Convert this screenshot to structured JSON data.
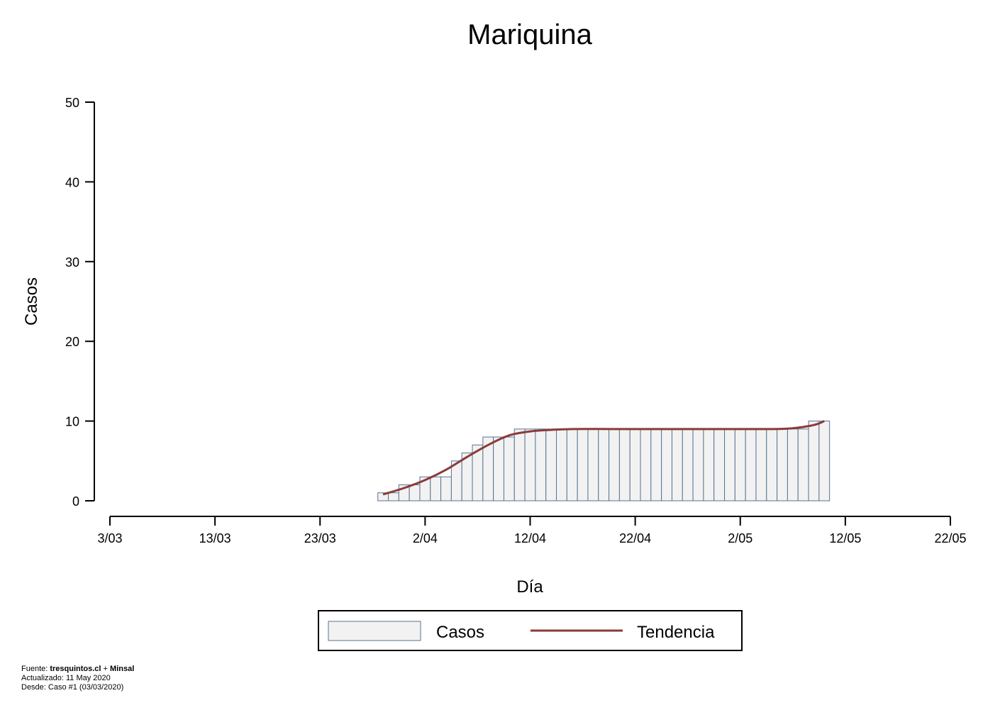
{
  "chart_data": {
    "type": "bar",
    "title": "Mariquina",
    "xlabel": "Día",
    "ylabel": "Casos",
    "ylim": [
      0,
      50
    ],
    "yticks": [
      0,
      10,
      20,
      30,
      40,
      50
    ],
    "x_start_date": "2020-03-03",
    "xticks": [
      "3/03",
      "13/03",
      "23/03",
      "2/04",
      "12/04",
      "22/04",
      "2/05",
      "12/05",
      "22/05"
    ],
    "xlim": [
      "3/03",
      "22/05"
    ],
    "grid": false,
    "legend_position": "bottom",
    "bar_fill": "#f2f2f2",
    "bar_stroke": "#5a7394",
    "trend_color": "#8b3a3a",
    "series": [
      {
        "name": "Casos",
        "kind": "bar",
        "x": [
          "29/03",
          "30/03",
          "31/03",
          "1/04",
          "2/04",
          "3/04",
          "4/04",
          "5/04",
          "6/04",
          "7/04",
          "8/04",
          "9/04",
          "10/04",
          "11/04",
          "12/04",
          "13/04",
          "14/04",
          "15/04",
          "16/04",
          "17/04",
          "18/04",
          "19/04",
          "20/04",
          "21/04",
          "22/04",
          "23/04",
          "24/04",
          "25/04",
          "26/04",
          "27/04",
          "28/04",
          "29/04",
          "30/04",
          "1/05",
          "2/05",
          "3/05",
          "4/05",
          "5/05",
          "6/05",
          "7/05",
          "8/05",
          "9/05",
          "10/05"
        ],
        "values": [
          1,
          1,
          2,
          2,
          3,
          3,
          3,
          5,
          6,
          7,
          8,
          8,
          8,
          9,
          9,
          9,
          9,
          9,
          9,
          9,
          9,
          9,
          9,
          9,
          9,
          9,
          9,
          9,
          9,
          9,
          9,
          9,
          9,
          9,
          9,
          9,
          9,
          9,
          9,
          9,
          9,
          10,
          10
        ]
      },
      {
        "name": "Tendencia",
        "kind": "line",
        "x": [
          "29/03",
          "31/03",
          "2/04",
          "4/04",
          "6/04",
          "8/04",
          "10/04",
          "12/04",
          "14/04",
          "16/04",
          "20/04",
          "25/04",
          "30/04",
          "5/05",
          "7/05",
          "9/05",
          "10/05"
        ],
        "values": [
          0.8,
          1.6,
          2.6,
          3.9,
          5.5,
          7.0,
          8.2,
          8.7,
          8.9,
          9.0,
          9.0,
          9.0,
          9.0,
          9.0,
          9.1,
          9.5,
          10.0
        ]
      }
    ]
  },
  "footer": {
    "source_prefix": "Fuente: ",
    "source_site": "tresquintos.cl",
    "source_sep": " + ",
    "source_org": "Minsal",
    "updated": "Actualizado: 11 May 2020",
    "since": "Desde: Caso #1  (03/03/2020)"
  }
}
